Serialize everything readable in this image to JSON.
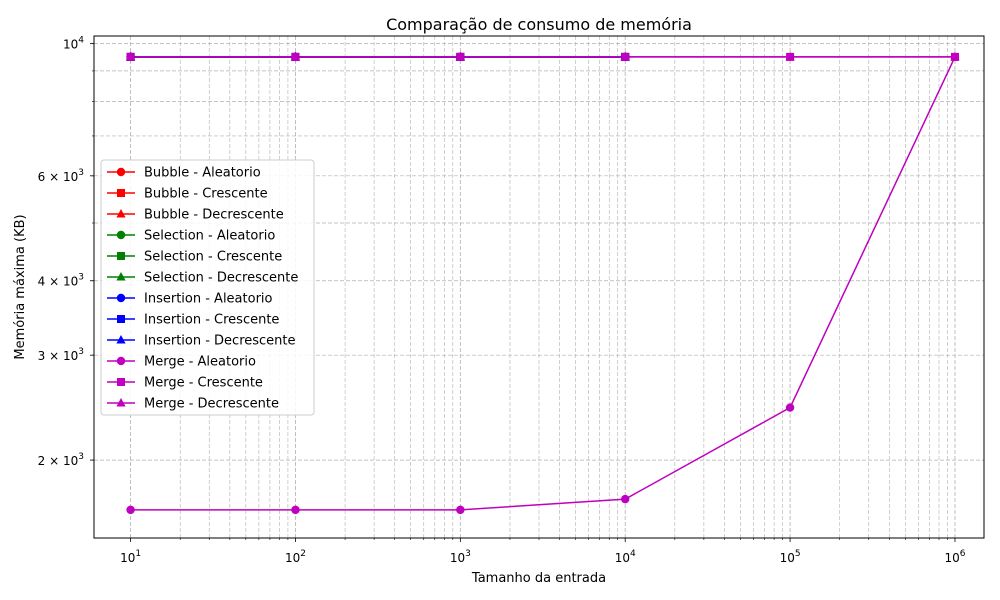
{
  "chart_data": {
    "type": "line",
    "title": "Comparação de consumo de memória",
    "xlabel": "Tamanho da entrada",
    "ylabel": "Memória máxima (KB)",
    "x_scale": "log",
    "y_scale": "log",
    "xlim": [
      6,
      1500000
    ],
    "ylim": [
      1480,
      10300
    ],
    "x_ticks": [
      {
        "value": 10,
        "base": "10",
        "exp": "1"
      },
      {
        "value": 100,
        "base": "10",
        "exp": "2"
      },
      {
        "value": 1000,
        "base": "10",
        "exp": "3"
      },
      {
        "value": 10000,
        "base": "10",
        "exp": "4"
      },
      {
        "value": 100000,
        "base": "10",
        "exp": "5"
      },
      {
        "value": 1000000,
        "base": "10",
        "exp": "6"
      }
    ],
    "y_ticks": [
      {
        "value": 2000,
        "mant": "2 × ",
        "base": "10",
        "exp": "3"
      },
      {
        "value": 3000,
        "mant": "3 × ",
        "base": "10",
        "exp": "3"
      },
      {
        "value": 4000,
        "mant": "4 × ",
        "base": "10",
        "exp": "3"
      },
      {
        "value": 6000,
        "mant": "6 × ",
        "base": "10",
        "exp": "3"
      },
      {
        "value": 10000,
        "mant": "",
        "base": "10",
        "exp": "4"
      }
    ],
    "grid": true,
    "legend_position": "center-left",
    "x": [
      10,
      100,
      1000,
      10000,
      100000,
      1000000
    ],
    "series": [
      {
        "name": "Bubble - Aleatorio",
        "color": "#ff0000",
        "marker": "circle",
        "x": [
          10,
          100,
          1000,
          10000
        ],
        "values": [
          9500,
          9500,
          9500,
          9500
        ]
      },
      {
        "name": "Bubble - Crescente",
        "color": "#ff0000",
        "marker": "square",
        "x": [
          10,
          100,
          1000,
          10000
        ],
        "values": [
          9500,
          9500,
          9500,
          9500
        ]
      },
      {
        "name": "Bubble - Decrescente",
        "color": "#ff0000",
        "marker": "triangle",
        "x": [
          10,
          100,
          1000,
          10000
        ],
        "values": [
          9500,
          9500,
          9500,
          9500
        ]
      },
      {
        "name": "Selection - Aleatorio",
        "color": "#008000",
        "marker": "circle",
        "x": [
          10,
          100,
          1000,
          10000
        ],
        "values": [
          9500,
          9500,
          9500,
          9500
        ]
      },
      {
        "name": "Selection - Crescente",
        "color": "#008000",
        "marker": "square",
        "x": [
          10,
          100,
          1000,
          10000
        ],
        "values": [
          9500,
          9500,
          9500,
          9500
        ]
      },
      {
        "name": "Selection - Decrescente",
        "color": "#008000",
        "marker": "triangle",
        "x": [
          10,
          100,
          1000,
          10000
        ],
        "values": [
          9500,
          9500,
          9500,
          9500
        ]
      },
      {
        "name": "Insertion - Aleatorio",
        "color": "#0000ff",
        "marker": "circle",
        "x": [
          10,
          100,
          1000,
          10000
        ],
        "values": [
          9500,
          9500,
          9500,
          9500
        ]
      },
      {
        "name": "Insertion - Crescente",
        "color": "#0000ff",
        "marker": "square",
        "x": [
          10,
          100,
          1000,
          10000
        ],
        "values": [
          9500,
          9500,
          9500,
          9500
        ]
      },
      {
        "name": "Insertion - Decrescente",
        "color": "#0000ff",
        "marker": "triangle",
        "x": [
          10,
          100,
          1000,
          10000
        ],
        "values": [
          9500,
          9500,
          9500,
          9500
        ]
      },
      {
        "name": "Merge - Aleatorio",
        "color": "#bf00bf",
        "marker": "circle",
        "x": [
          10,
          100,
          1000,
          10000,
          100000,
          1000000
        ],
        "values": [
          1650,
          1650,
          1650,
          1720,
          2450,
          9500
        ]
      },
      {
        "name": "Merge - Crescente",
        "color": "#bf00bf",
        "marker": "square",
        "x": [
          10,
          100,
          1000,
          10000,
          100000,
          1000000
        ],
        "values": [
          9500,
          9500,
          9500,
          9500,
          9500,
          9500
        ]
      },
      {
        "name": "Merge - Decrescente",
        "color": "#bf00bf",
        "marker": "triangle",
        "x": [
          10,
          100,
          1000,
          10000,
          100000,
          1000000
        ],
        "values": [
          9500,
          9500,
          9500,
          9500,
          9500,
          9500
        ]
      }
    ]
  }
}
